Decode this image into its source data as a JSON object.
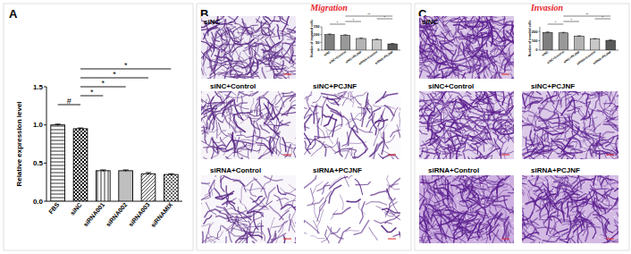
{
  "chart_data": [
    {
      "type": "bar",
      "y_label": "Relative expression level",
      "categories": [
        "FBS",
        "siNC",
        "siRNA001",
        "siRNA002",
        "siRNA003",
        "siRNAMIX"
      ],
      "values": [
        1.0,
        0.95,
        0.4,
        0.4,
        0.36,
        0.35
      ],
      "errors": [
        0.01,
        0.01,
        0.01,
        0.01,
        0.015,
        0.01
      ],
      "color": "#000000",
      "ylim": [
        0,
        1.5
      ],
      "yticks": [
        {
          "value": 0,
          "label": "0.0"
        },
        {
          "value": 0.5,
          "label": "0.5"
        },
        {
          "value": 1,
          "label": "1.0"
        },
        {
          "value": 1.5,
          "label": "1.5"
        }
      ],
      "significance": [
        {
          "from": "FBS",
          "to": "siNC",
          "text": "#"
        },
        {
          "from": "siNC",
          "to": "siRNA001",
          "text": "*"
        },
        {
          "from": "siNC",
          "to": "siRNA002",
          "text": "*"
        },
        {
          "from": "siNC",
          "to": "siRNA003",
          "text": "*"
        },
        {
          "from": "siNC",
          "to": "siRNAMIX",
          "text": "*"
        }
      ]
    },
    {
      "type": "bar",
      "y_label": "Number of migrated cells",
      "categories": [
        "siNC",
        "siNC+Control",
        "siNC+PCJNF",
        "siRNA+Control",
        "siRNA+PCJNF"
      ],
      "values": [
        100,
        95,
        75,
        68,
        40
      ],
      "errors": [
        4,
        4,
        4,
        3,
        3
      ],
      "colors": [
        "#7f7f7f",
        "#999999",
        "#b3b3b3",
        "#c8c8c8",
        "#5a5a5a"
      ],
      "ylim": [
        0,
        150
      ],
      "yticks": [
        0,
        50,
        100,
        150
      ],
      "significance": [
        {
          "from": "siNC",
          "to": "siNC+Control",
          "text": "*"
        },
        {
          "from": "siNC+Control",
          "to": "siNC+PCJNF",
          "text": "*"
        },
        {
          "from": "siRNA+Control",
          "to": "siRNA+PCJNF",
          "text": "*"
        },
        {
          "from": "siNC+Control",
          "to": "siRNA+PCJNF",
          "text": "**"
        }
      ]
    },
    {
      "type": "bar",
      "y_label": "Number of invaded cells",
      "categories": [
        "siNC",
        "siNC+Control",
        "siNC+PCJNF",
        "siRNA+Control",
        "siRNA+PCJNF"
      ],
      "values": [
        190,
        185,
        150,
        120,
        105
      ],
      "errors": [
        6,
        6,
        5,
        5,
        4
      ],
      "colors": [
        "#7f7f7f",
        "#999999",
        "#b3b3b3",
        "#c8c8c8",
        "#5a5a5a"
      ],
      "ylim": [
        0,
        250
      ],
      "yticks": [
        0,
        100,
        200
      ],
      "significance": [
        {
          "from": "siNC",
          "to": "siNC+Control",
          "text": "*"
        },
        {
          "from": "siNC+Control",
          "to": "siNC+PCJNF",
          "text": "*"
        },
        {
          "from": "siRNA+Control",
          "to": "siRNA+PCJNF",
          "text": "*"
        },
        {
          "from": "siNC+Control",
          "to": "siRNA+PCJNF",
          "text": "**"
        }
      ]
    }
  ],
  "figure": {
    "panels": [
      {
        "label": "A"
      },
      {
        "label": "B",
        "title": "Migration",
        "images": [
          "siNC",
          "siNC+Control",
          "siNC+PCJNF",
          "siRNA+Control",
          "siRNA+PCJNF"
        ]
      },
      {
        "label": "C",
        "title": "Invasion",
        "images": [
          "siNC",
          "siNC+Control",
          "siNC+PCJNF",
          "siRNA+Control",
          "siRNA+PCJNF"
        ]
      }
    ]
  }
}
